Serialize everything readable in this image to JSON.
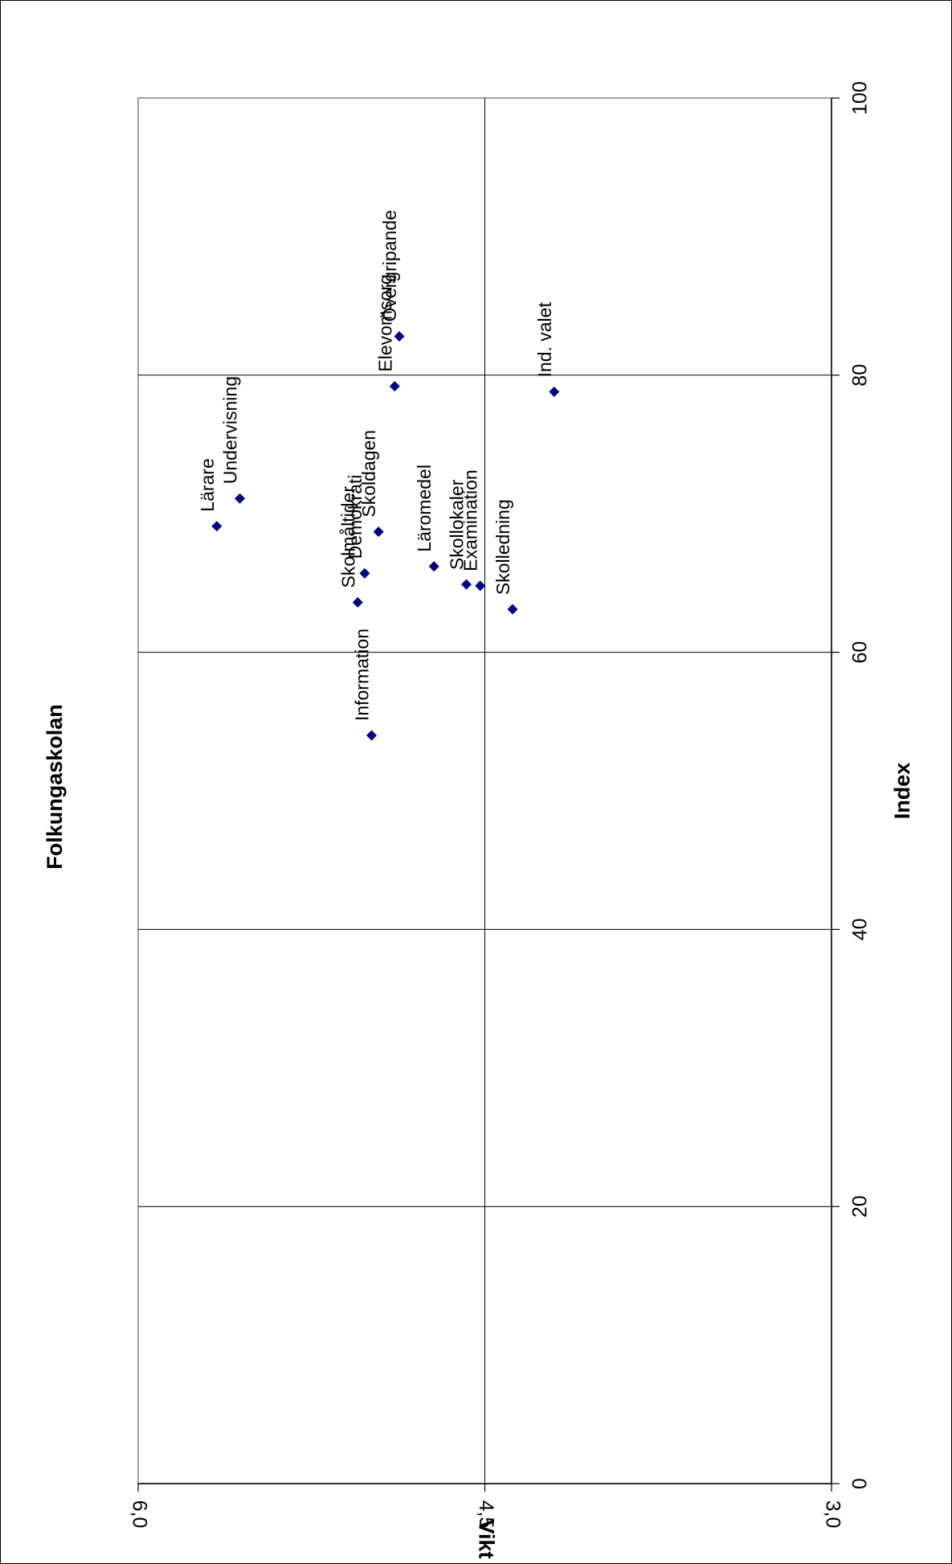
{
  "chart_data": {
    "type": "scatter",
    "title": "Folkungaskolan",
    "xlabel": "Index",
    "ylabel": "Vikt",
    "xlim": [
      0,
      100
    ],
    "ylim": [
      3.0,
      6.0
    ],
    "x_ticks": [
      "0",
      "20",
      "40",
      "60",
      "80",
      "100"
    ],
    "y_ticks": [
      "3,0",
      "4,5",
      "6,0"
    ],
    "grid": true,
    "orientation": "rotated 90 degrees clockwise",
    "marker_color": "#000080",
    "points": [
      {
        "label": "Information",
        "x": 54.0,
        "y": 4.99
      },
      {
        "label": "Skolmåltider",
        "x": 63.6,
        "y": 5.05
      },
      {
        "label": "Demokrati",
        "x": 65.7,
        "y": 5.02
      },
      {
        "label": "Skoldagen",
        "x": 68.7,
        "y": 4.96
      },
      {
        "label": "Lärare",
        "x": 69.1,
        "y": 5.66
      },
      {
        "label": "Undervisning",
        "x": 71.1,
        "y": 5.56
      },
      {
        "label": "Läromedel",
        "x": 66.2,
        "y": 4.72
      },
      {
        "label": "Skollokaler",
        "x": 64.9,
        "y": 4.58
      },
      {
        "label": "Examination",
        "x": 64.8,
        "y": 4.52
      },
      {
        "label": "Skolledning",
        "x": 63.1,
        "y": 4.38
      },
      {
        "label": "Ind. valet",
        "x": 78.8,
        "y": 4.2
      },
      {
        "label": "Elevomsorg",
        "x": 79.2,
        "y": 4.89
      },
      {
        "label": "Övergripande",
        "x": 82.8,
        "y": 4.87
      }
    ]
  }
}
